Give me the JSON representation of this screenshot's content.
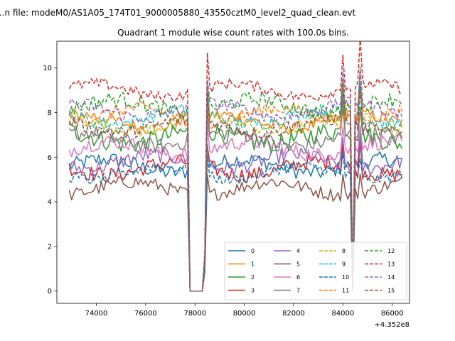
{
  "chart_data": {
    "type": "line",
    "suptitle": "...n file: modeM0/AS1A05_174T01_9000005880_43550cztM0_level2_quad_clean.evt",
    "title": "Quadrant 1 module wise count rates with 100.0s bins.",
    "xlabel": "",
    "ylabel": "",
    "offset_text": "+4.352e8",
    "xlim": [
      72400,
      86700
    ],
    "ylim": [
      -0.55,
      11.2
    ],
    "xticks": [
      74000,
      76000,
      78000,
      80000,
      82000,
      84000,
      86000
    ],
    "yticks": [
      0,
      2,
      4,
      6,
      8,
      10
    ],
    "grid": false,
    "legend": {
      "placement": "lower-right",
      "columns": 4
    },
    "x_start": 72900,
    "x_step": 100,
    "x_end": 86400,
    "gaps": [
      {
        "start": 77800,
        "end": 78300
      },
      {
        "start": 84350,
        "end": 84480
      }
    ],
    "dip_points": [
      {
        "x": 77550,
        "factor": 0.55
      },
      {
        "x": 77650,
        "factor": 0.12
      },
      {
        "x": 78400,
        "factor": 0.2
      },
      {
        "x": 78500,
        "factor": 1.15
      },
      {
        "x": 84250,
        "factor": 0.5
      },
      {
        "x": 84550,
        "factor": 0.35
      },
      {
        "x": 84650,
        "factor": 1.1
      }
    ],
    "spike_points": [
      {
        "x": 78500,
        "factor": 1.25
      },
      {
        "x": 84700,
        "factor": 1.2
      },
      {
        "x": 84000,
        "factor": 1.2
      }
    ],
    "series": [
      {
        "name": "0",
        "color": "#1f77b4",
        "dashed": false,
        "level": 5.6,
        "noise": 0.35
      },
      {
        "name": "1",
        "color": "#ff7f0e",
        "dashed": false,
        "level": 7.6,
        "noise": 0.3
      },
      {
        "name": "2",
        "color": "#2ca02c",
        "dashed": false,
        "level": 6.9,
        "noise": 0.45
      },
      {
        "name": "3",
        "color": "#d62728",
        "dashed": false,
        "level": 5.5,
        "noise": 0.35
      },
      {
        "name": "4",
        "color": "#9467bd",
        "dashed": false,
        "level": 5.8,
        "noise": 0.35
      },
      {
        "name": "5",
        "color": "#8c564b",
        "dashed": false,
        "level": 4.6,
        "noise": 0.3
      },
      {
        "name": "6",
        "color": "#e377c2",
        "dashed": false,
        "level": 6.4,
        "noise": 0.35
      },
      {
        "name": "7",
        "color": "#7f7f7f",
        "dashed": false,
        "level": 6.8,
        "noise": 0.35
      },
      {
        "name": "8",
        "color": "#bcbd22",
        "dashed": true,
        "level": 7.5,
        "noise": 0.3
      },
      {
        "name": "9",
        "color": "#17becf",
        "dashed": true,
        "level": 7.8,
        "noise": 0.3
      },
      {
        "name": "10",
        "color": "#1f77b4",
        "dashed": true,
        "level": 5.3,
        "noise": 0.25
      },
      {
        "name": "11",
        "color": "#ff7f0e",
        "dashed": true,
        "level": 7.9,
        "noise": 0.3
      },
      {
        "name": "12",
        "color": "#2ca02c",
        "dashed": true,
        "level": 8.3,
        "noise": 0.35
      },
      {
        "name": "13",
        "color": "#d62728",
        "dashed": true,
        "level": 9.0,
        "noise": 0.25
      },
      {
        "name": "14",
        "color": "#9467bd",
        "dashed": true,
        "level": 8.1,
        "noise": 0.3
      },
      {
        "name": "15",
        "color": "#8c564b",
        "dashed": true,
        "level": 7.4,
        "noise": 0.3
      }
    ]
  }
}
